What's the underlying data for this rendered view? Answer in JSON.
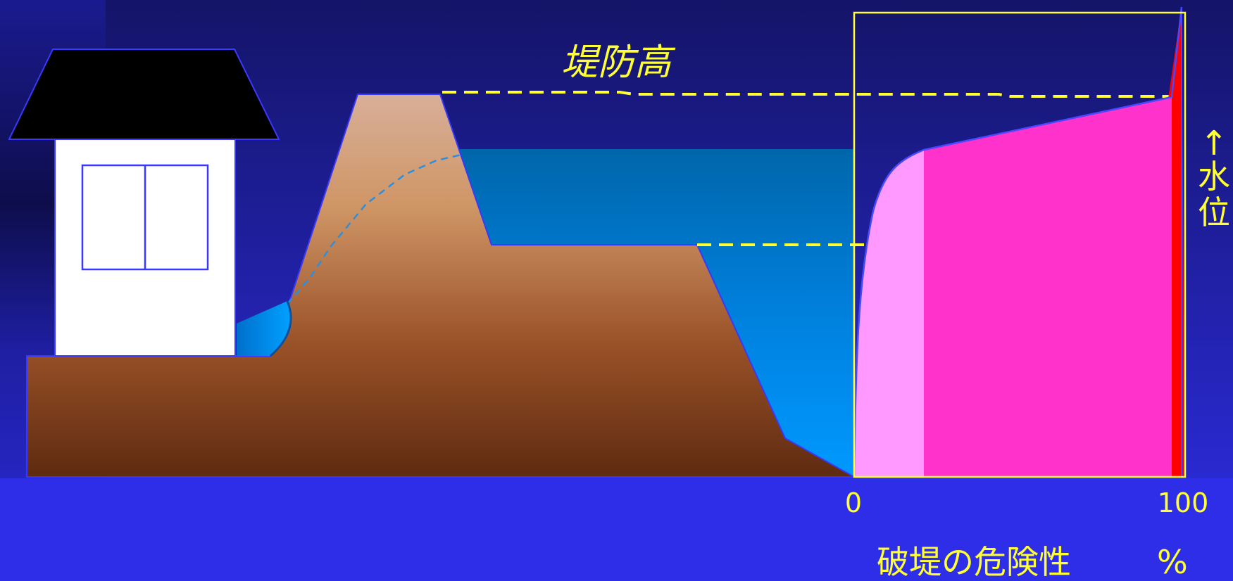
{
  "labels": {
    "levee_height": "堤防高",
    "x_start": "0",
    "x_end": "100",
    "x_axis_title": "破堤の危険性",
    "x_axis_unit": "%",
    "y_arrow": "↑",
    "y_axis_title_1": "水",
    "y_axis_title_2": "位"
  },
  "colors": {
    "background": "#2e2ee8",
    "ground_top": "#d8b09a",
    "ground_bottom": "#5e2a10",
    "water": "#0090ff",
    "house_roof": "#000000",
    "house_wall": "#ffffff",
    "annotation": "#ffff33",
    "risk_low": "#ff99ff",
    "risk_mid": "#ff33cc",
    "risk_high": "#ff0000"
  },
  "chart_data": {
    "type": "area",
    "xlim": [
      0,
      100
    ],
    "x_tick_labels": [
      "0",
      "100"
    ],
    "xlabel": "破堤の危険性　%",
    "ylabel": "水位",
    "grid": false,
    "bands": [
      "risk_low",
      "risk_mid",
      "risk_high"
    ]
  }
}
